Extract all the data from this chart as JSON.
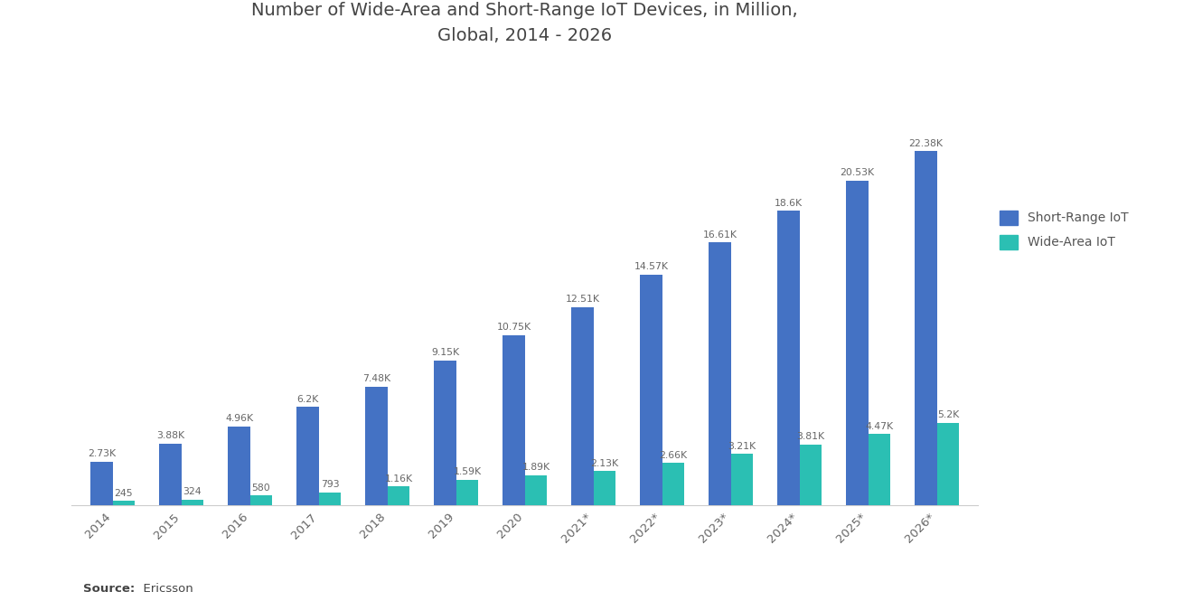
{
  "title": "Number of Wide-Area and Short-Range IoT Devices, in Million,\nGlobal, 2014 - 2026",
  "years": [
    "2014",
    "2015",
    "2016",
    "2017",
    "2018",
    "2019",
    "2020",
    "2021*",
    "2022*",
    "2023*",
    "2024*",
    "2025*",
    "2026*"
  ],
  "short_range": [
    2730,
    3880,
    4960,
    6200,
    7480,
    9150,
    10750,
    12510,
    14570,
    16610,
    18600,
    20530,
    22380
  ],
  "wide_area": [
    245,
    324,
    580,
    793,
    1160,
    1590,
    1890,
    2130,
    2660,
    3210,
    3810,
    4470,
    5200
  ],
  "short_range_labels": [
    "2.73K",
    "3.88K",
    "4.96K",
    "6.2K",
    "7.48K",
    "9.15K",
    "10.75K",
    "12.51K",
    "14.57K",
    "16.61K",
    "18.6K",
    "20.53K",
    "22.38K"
  ],
  "wide_area_labels": [
    "245",
    "324",
    "580",
    "793",
    "1.16K",
    "1.59K",
    "1.89K",
    "2.13K",
    "2.66K",
    "3.21K",
    "3.81K",
    "4.47K",
    "5.2K"
  ],
  "short_range_color": "#4472C4",
  "wide_area_color": "#2BBFB3",
  "background_color": "#FFFFFF",
  "title_fontsize": 14,
  "label_fontsize": 7.8,
  "source_bold": "Source:",
  "source_rest": "  Ericsson",
  "legend_short": "Short-Range IoT",
  "legend_wide": "Wide-Area IoT",
  "ylim": 27000,
  "bar_width": 0.32,
  "tick_fontsize": 9.5
}
